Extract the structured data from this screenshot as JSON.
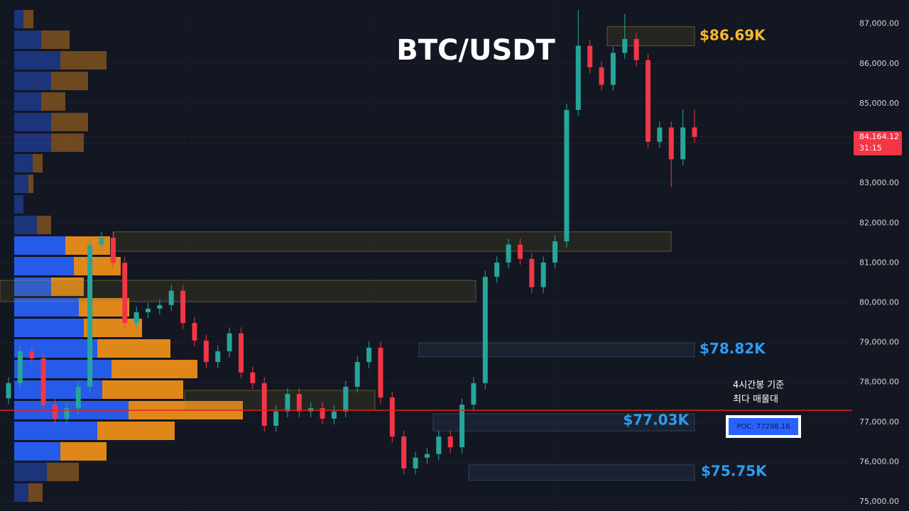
{
  "chart_data": {
    "type": "candlestick",
    "title": "BTC/USDT",
    "categories": [
      null,
      null,
      null,
      null,
      null,
      null,
      null,
      null,
      null,
      null,
      null,
      null,
      null,
      null,
      null,
      null,
      null,
      null,
      null,
      null,
      null,
      null,
      null,
      null,
      null,
      null,
      null,
      null,
      null,
      null,
      null,
      null,
      null,
      null,
      null,
      null,
      null,
      null,
      null,
      null,
      null,
      null,
      null,
      null,
      null,
      null,
      null,
      null,
      null,
      null,
      null,
      null,
      null,
      null,
      null,
      null,
      null,
      null,
      null,
      null
    ],
    "open": [
      77600,
      77980,
      78780,
      78600,
      77440,
      77090,
      77350,
      77890,
      81455,
      81630,
      81000,
      79490,
      79760,
      79850,
      79940,
      80300,
      79490,
      79050,
      78510,
      78780,
      79230,
      78250,
      77980,
      76910,
      77270,
      77710,
      77270,
      77350,
      77090,
      77270,
      77890,
      78510,
      78870,
      77620,
      76640,
      75840,
      76110,
      76200,
      76640,
      76370,
      77440,
      77980,
      80650,
      81010,
      81460,
      81100,
      80390,
      81010,
      81540,
      84840,
      86450,
      85910,
      85470,
      86270,
      86620,
      86090,
      84040,
      84400,
      83600,
      84400
    ],
    "high": [
      78130,
      78930,
      78930,
      78750,
      77590,
      77500,
      78040,
      81605,
      81780,
      81780,
      81150,
      79910,
      80000,
      80090,
      80450,
      80450,
      79640,
      79200,
      78930,
      79380,
      79380,
      78400,
      78130,
      77420,
      77860,
      77860,
      77500,
      77500,
      77420,
      78040,
      78660,
      79020,
      79020,
      77770,
      76790,
      76260,
      76350,
      76790,
      76790,
      77590,
      78130,
      80800,
      81160,
      81610,
      81610,
      81250,
      81160,
      81690,
      84990,
      87350,
      86600,
      86060,
      86420,
      87250,
      86770,
      86240,
      84550,
      84550,
      84850,
      84850
    ],
    "low": [
      77450,
      77830,
      78450,
      77290,
      76940,
      76940,
      77200,
      77740,
      81305,
      80850,
      79340,
      79340,
      79610,
      79700,
      79790,
      79340,
      78900,
      78360,
      78360,
      78630,
      78100,
      77830,
      76760,
      76760,
      77120,
      77120,
      77120,
      76940,
      76940,
      77120,
      77740,
      78360,
      77470,
      76490,
      75690,
      75690,
      75960,
      76050,
      76220,
      76220,
      77290,
      77830,
      80500,
      80860,
      80950,
      80240,
      80240,
      80860,
      81390,
      84690,
      85760,
      85320,
      85320,
      86120,
      85940,
      83890,
      83890,
      82900,
      83450,
      84014
    ],
    "close": [
      77980,
      78780,
      78600,
      77440,
      77090,
      77350,
      77890,
      81455,
      81630,
      81000,
      79490,
      79760,
      79850,
      79940,
      80300,
      79490,
      79050,
      78510,
      78780,
      79230,
      78250,
      77980,
      76910,
      77270,
      77710,
      77270,
      77350,
      77090,
      77270,
      77890,
      78510,
      78870,
      77620,
      76640,
      75840,
      76110,
      76200,
      76640,
      76370,
      77440,
      77980,
      80650,
      81010,
      81460,
      81100,
      80390,
      81010,
      81540,
      84840,
      86450,
      85910,
      85470,
      86270,
      86620,
      86090,
      84040,
      84400,
      83600,
      84400,
      84164.12
    ],
    "up_color": "#26a69a",
    "down_color": "#f23645",
    "ylim": [
      74770,
      87600
    ],
    "yticks": [
      {
        "value": 75000,
        "label": "75,000.00"
      },
      {
        "value": 76000,
        "label": "76,000.00"
      },
      {
        "value": 77000,
        "label": "77,000.00"
      },
      {
        "value": 78000,
        "label": "78,000.00"
      },
      {
        "value": 79000,
        "label": "79,000.00"
      },
      {
        "value": 80000,
        "label": "80,000.00"
      },
      {
        "value": 81000,
        "label": "81,000.00"
      },
      {
        "value": 82000,
        "label": "82,000.00"
      },
      {
        "value": 83000,
        "label": "83,000.00"
      },
      {
        "value": 84000,
        "label": "84,000.00"
      },
      {
        "value": 85000,
        "label": "85,000.00"
      },
      {
        "value": 86000,
        "label": "86,000.00"
      },
      {
        "value": 87000,
        "label": "87,000.00"
      }
    ],
    "grid": true,
    "last_price": {
      "value": 84164.12,
      "label": "84,164.12"
    },
    "countdown": "31:15",
    "zones": [
      {
        "top": 86930,
        "bottom": 86450,
        "value": 86690,
        "label": "$86.69K",
        "color": "#f5b731"
      },
      {
        "top": 81780,
        "bottom": 81290
      },
      {
        "top": 80560,
        "bottom": 80030
      },
      {
        "top": 78990,
        "bottom": 78640,
        "value": 78820,
        "label": "$78.82K",
        "color": "#2a9df4"
      },
      {
        "top": 77800,
        "bottom": 77300
      },
      {
        "top": 77210,
        "bottom": 76780,
        "value": 77030,
        "label": "$77.03K",
        "color": "#2a9df4"
      },
      {
        "top": 75930,
        "bottom": 75540,
        "value": 75750,
        "label": "$75.75K",
        "color": "#2a9df4"
      }
    ],
    "poc": {
      "value": 77298.16,
      "label": "POC: 77298.16",
      "color": "#e02020"
    },
    "annotation": [
      "4시간봉 기준",
      "최다 매물대"
    ],
    "volume_profile": {
      "buy": [
        13,
        38,
        65,
        52,
        38,
        52,
        52,
        26,
        20,
        13,
        32,
        72,
        84,
        52,
        91,
        98,
        117,
        137,
        124,
        161,
        117,
        65,
        46,
        20
      ],
      "sell": [
        14,
        40,
        65,
        52,
        34,
        52,
        46,
        14,
        7,
        0,
        20,
        63,
        66,
        46,
        71,
        82,
        103,
        121,
        114,
        161,
        109,
        65,
        45,
        20
      ],
      "value_area_rows": [
        11,
        21
      ],
      "buy_color": "#2962ff",
      "sell_color": "#f7931a"
    }
  }
}
